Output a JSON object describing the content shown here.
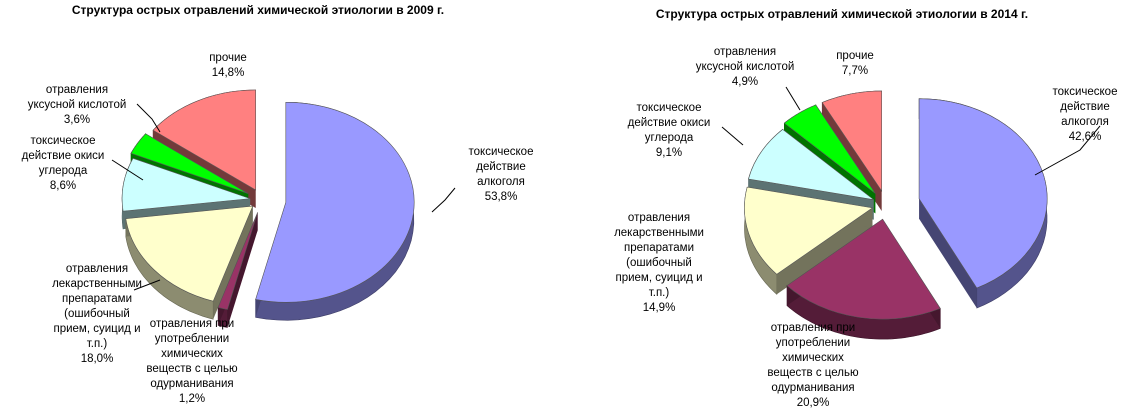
{
  "chart_data": [
    {
      "type": "pie",
      "title": "Структура острых отравлений химической этиологии в 2009 г.",
      "slices": [
        {
          "label": "токсическое действие алкоголя",
          "value": 53.8,
          "value_label": "53,8%",
          "color": "#9999ff"
        },
        {
          "label": "отравления при употреблении химических веществ с целью одурманивания",
          "value": 1.2,
          "value_label": "1,2%",
          "color": "#993366"
        },
        {
          "label": "отравления лекарственными препаратами (ошибочный прием, суицид и т.п.)",
          "value": 18.0,
          "value_label": "18,0%",
          "color": "#ffffcc"
        },
        {
          "label": "токсическое действие окиси углерода",
          "value": 8.6,
          "value_label": "8,6%",
          "color": "#ccffff"
        },
        {
          "label": "отравления уксусной кислотой",
          "value": 3.6,
          "value_label": "3,6%",
          "color": "#00ff00"
        },
        {
          "label": "прочие",
          "value": 14.8,
          "value_label": "14,8%",
          "color": "#ff8080"
        }
      ]
    },
    {
      "type": "pie",
      "title": "Структура острых отравлений химической этиологии в 2014 г.",
      "slices": [
        {
          "label": "токсическое действие алкоголя",
          "value": 42.6,
          "value_label": "42,6%",
          "color": "#9999ff"
        },
        {
          "label": "отравления при употреблении химических веществ с целью одурманивания",
          "value": 20.9,
          "value_label": "20,9%",
          "color": "#993366"
        },
        {
          "label": "отравления лекарственными препаратами (ошибочный прием, суицид и т.п.)",
          "value": 14.9,
          "value_label": "14,9%",
          "color": "#ffffcc"
        },
        {
          "label": "токсическое действие окиси углерода",
          "value": 9.1,
          "value_label": "9,1%",
          "color": "#ccffff"
        },
        {
          "label": "отравления уксусной кислотой",
          "value": 4.9,
          "value_label": "4,9%",
          "color": "#00ff00"
        },
        {
          "label": "прочие",
          "value": 7.7,
          "value_label": "7,7%",
          "color": "#ff8080"
        }
      ]
    }
  ]
}
